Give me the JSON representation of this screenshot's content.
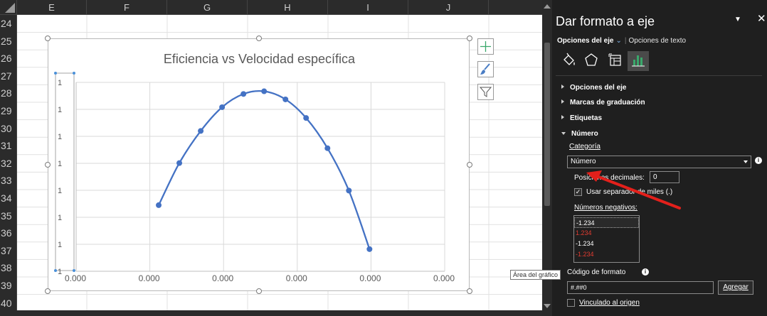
{
  "sheet": {
    "columns": [
      "E",
      "F",
      "G",
      "H",
      "I",
      "J"
    ],
    "rows": [
      "24",
      "25",
      "26",
      "27",
      "28",
      "29",
      "30",
      "31",
      "32",
      "33",
      "34",
      "35",
      "36",
      "37",
      "38",
      "39",
      "40"
    ]
  },
  "chart_data": {
    "type": "scatter",
    "title": "Eficiencia vs Velocidad específica",
    "xlabel": "",
    "ylabel": "",
    "x_tick_labels": [
      "0.000",
      "0.000",
      "0.000",
      "0.000",
      "0.000",
      "0.000"
    ],
    "y_tick_labels": [
      "1",
      "1",
      "1",
      "1",
      "1",
      "1",
      "1",
      "1"
    ],
    "smooth_line": true,
    "grid": true,
    "color": "#4472c4",
    "series": [
      {
        "points": [
          [
            1.12,
            0.245
          ],
          [
            1.4,
            0.401
          ],
          [
            1.69,
            0.52
          ],
          [
            1.98,
            0.608
          ],
          [
            2.27,
            0.657
          ],
          [
            2.55,
            0.667
          ],
          [
            2.84,
            0.637
          ],
          [
            3.12,
            0.568
          ],
          [
            3.41,
            0.456
          ],
          [
            3.7,
            0.299
          ],
          [
            3.98,
            0.082
          ]
        ]
      }
    ],
    "xlim": [
      0,
      5
    ],
    "ylim": [
      0,
      0.7
    ]
  },
  "chart_buttons": {
    "elements": "+",
    "styles": "brush",
    "filter": "filter"
  },
  "tooltip": "Área del gráfico",
  "pane": {
    "title": "Dar formato a eje",
    "tab_axis": "Opciones del eje",
    "tab_text": "Opciones de texto",
    "icons": [
      "fill-line-icon",
      "effects-icon",
      "size-properties-icon",
      "axis-options-icon"
    ],
    "sections": {
      "axis_options": "Opciones del eje",
      "tick_marks": "Marcas de graduación",
      "labels": "Etiquetas",
      "number": "Número"
    },
    "category_label": "Categoría",
    "category_value": "Número",
    "decimal_label": "Posiciones decimales:",
    "decimal_value": "0",
    "thousands_label": "Usar separador de miles (.)",
    "negatives_label": "Números negativos:",
    "negative_options": [
      "-1.234",
      "1.234",
      "-1.234",
      "-1.234"
    ],
    "negative_colors": [
      "#ffffff",
      "#e03c31",
      "#ffffff",
      "#e03c31"
    ],
    "format_code_label": "Código de formato",
    "format_code_value": "#.##0",
    "add_button": "Agregar",
    "linked_label": "Vinculado al origen"
  }
}
